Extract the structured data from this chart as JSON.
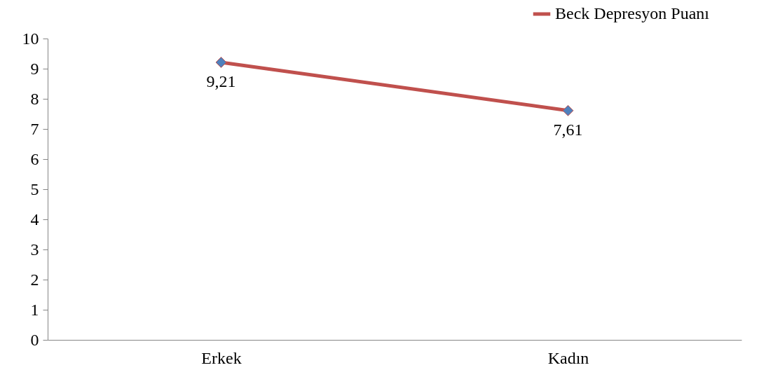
{
  "chart_data": {
    "type": "line",
    "categories": [
      "Erkek",
      "Kadın"
    ],
    "series": [
      {
        "name": "Beck Depresyon Puanı",
        "color": "#c0504d",
        "values": [
          9.21,
          7.61
        ],
        "value_labels": [
          "9,21",
          "7,61"
        ]
      }
    ],
    "ylim": [
      0,
      10
    ],
    "yticks": [
      0,
      1,
      2,
      3,
      4,
      5,
      6,
      7,
      8,
      9,
      10
    ],
    "grid": false,
    "legend": "top right",
    "marker": "diamond",
    "line_style": "solid"
  }
}
